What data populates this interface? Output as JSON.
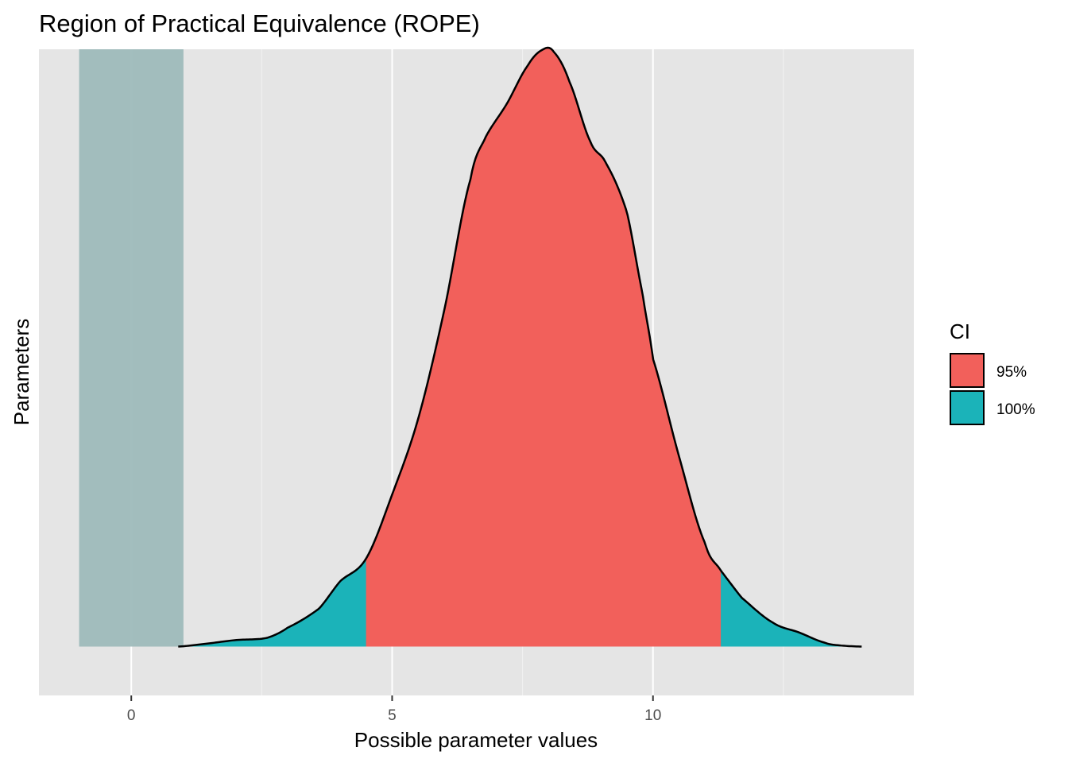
{
  "chart_data": {
    "type": "area",
    "title": "Region of Practical Equivalence (ROPE)",
    "xlabel": "Possible parameter values",
    "ylabel": "Parameters",
    "xlim": [
      -1.77,
      15.0
    ],
    "ylim": [
      -0.09,
      1.1
    ],
    "x_ticks": [
      0,
      5,
      10
    ],
    "x_tick_labels": [
      "0",
      "5",
      "10"
    ],
    "grid": true,
    "legend_position": "right",
    "rope": {
      "xmin": -1.0,
      "xmax": 1.0,
      "color": "#9EBABB"
    },
    "ci_95": {
      "xmin": 4.5,
      "xmax": 11.3
    },
    "legend": {
      "title": "CI",
      "items": [
        {
          "label": "95%",
          "color": "#F2605B"
        },
        {
          "label": "100%",
          "color": "#1BB3B9"
        }
      ]
    },
    "density": {
      "x": [
        0.9,
        1.5,
        2.0,
        2.6,
        3.0,
        3.6,
        4.0,
        4.5,
        5.0,
        5.5,
        6.0,
        6.5,
        6.8,
        7.2,
        7.6,
        7.9,
        8.1,
        8.4,
        8.8,
        9.1,
        9.5,
        9.8,
        10.0,
        10.5,
        11.0,
        11.3,
        11.7,
        12.3,
        12.8,
        13.3,
        13.6,
        14.0
      ],
      "y": [
        0.0,
        0.006,
        0.012,
        0.016,
        0.035,
        0.07,
        0.12,
        0.162,
        0.28,
        0.42,
        0.62,
        0.86,
        0.94,
        1.0,
        1.07,
        1.1,
        1.095,
        1.04,
        0.93,
        0.89,
        0.8,
        0.65,
        0.53,
        0.35,
        0.19,
        0.14,
        0.09,
        0.044,
        0.026,
        0.007,
        0.002,
        0.0
      ]
    }
  }
}
